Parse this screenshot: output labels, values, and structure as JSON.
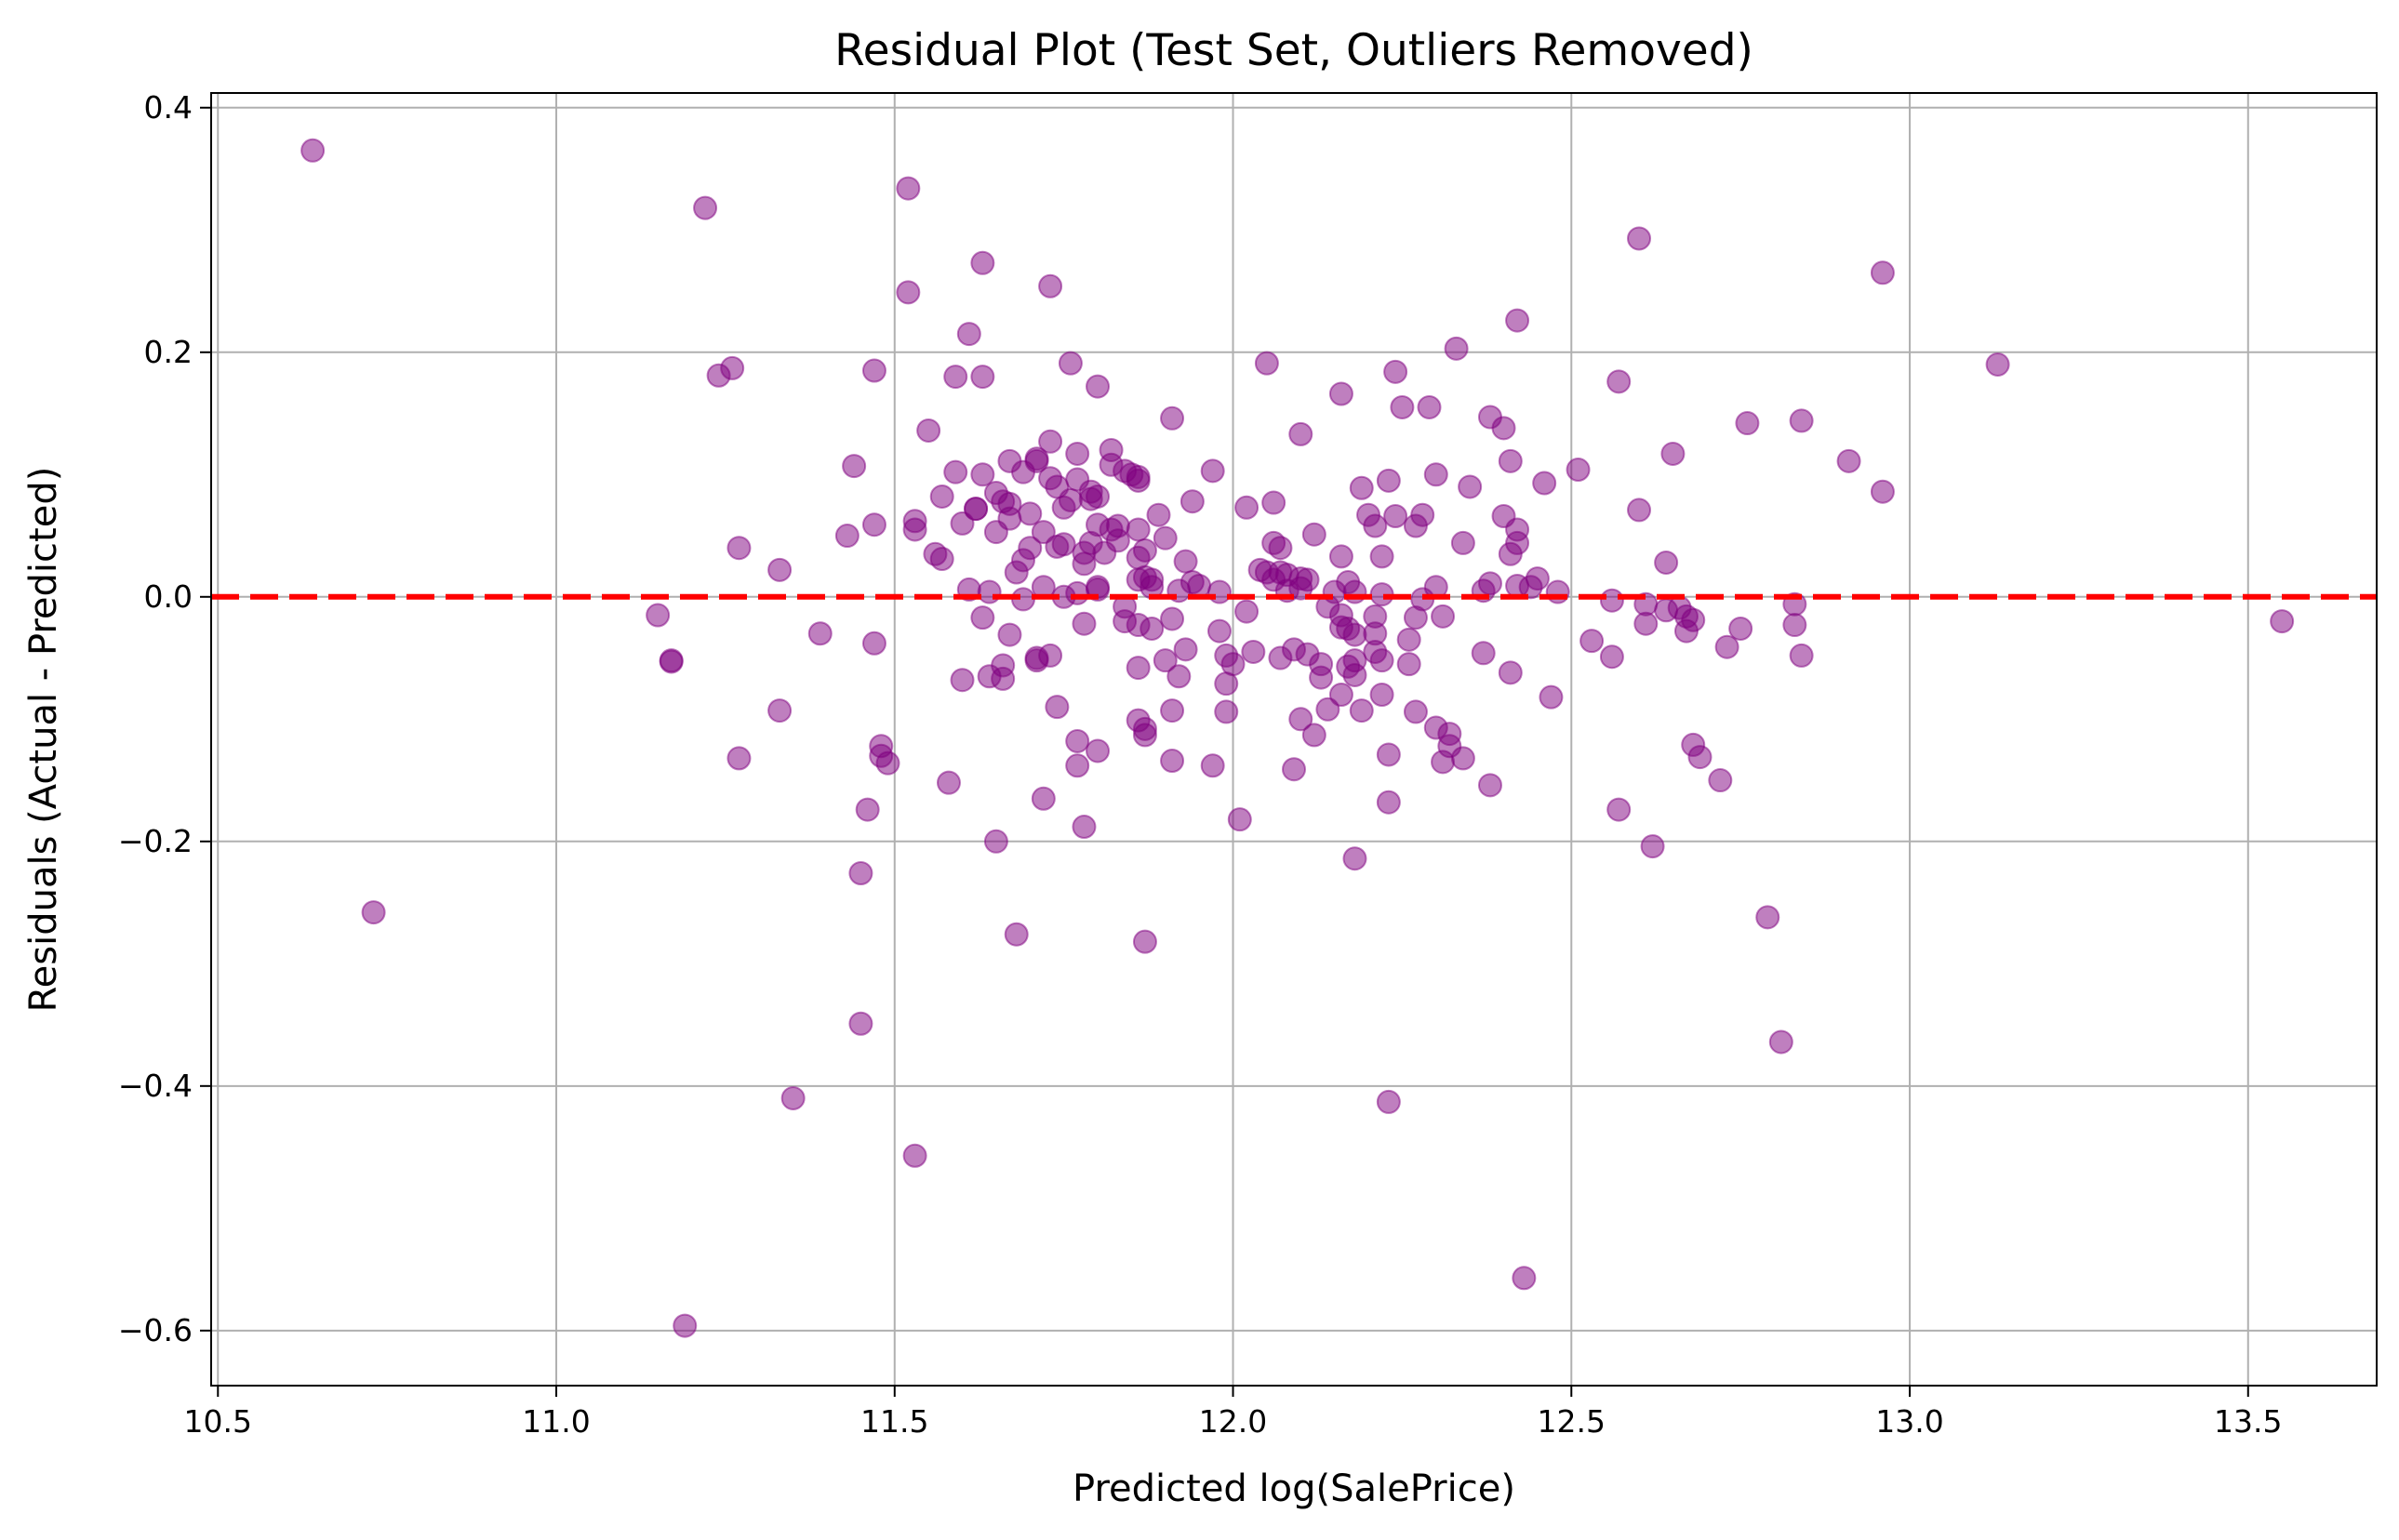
{
  "chart_data": {
    "type": "scatter",
    "title": "Residual Plot (Test Set, Outliers Removed)",
    "xlabel": "Predicted log(SalePrice)",
    "ylabel": "Residuals (Actual - Predicted)",
    "xlim": [
      10.49,
      13.69
    ],
    "ylim": [
      -0.645,
      0.412
    ],
    "x_ticks": [
      10.5,
      11.0,
      11.5,
      12.0,
      12.5,
      13.0,
      13.5
    ],
    "x_tick_labels": [
      "10.5",
      "11.0",
      "11.5",
      "12.0",
      "12.5",
      "13.0",
      "13.5"
    ],
    "y_ticks": [
      0.4,
      0.2,
      0.0,
      -0.2,
      -0.4,
      -0.6
    ],
    "y_tick_labels": [
      "0.4",
      "0.2",
      "0.0",
      "−0.2",
      "−0.4",
      "−0.6"
    ],
    "grid": true,
    "reference_line": {
      "y": 0.0,
      "style": "dashed",
      "color": "#ff0000"
    },
    "colors": {
      "point": "#800080",
      "point_opacity": 0.5,
      "reference_line": "#ff0000",
      "grid": "#b0b0b0"
    },
    "series": [
      {
        "points": [
          [
            10.64,
            0.365
          ],
          [
            10.73,
            -0.258
          ],
          [
            11.15,
            -0.015
          ],
          [
            11.17,
            -0.052
          ],
          [
            11.17,
            -0.053
          ],
          [
            11.19,
            -0.596
          ],
          [
            11.22,
            0.318
          ],
          [
            11.24,
            0.181
          ],
          [
            11.26,
            0.187
          ],
          [
            11.27,
            0.04
          ],
          [
            11.27,
            -0.132
          ],
          [
            11.33,
            0.022
          ],
          [
            11.33,
            -0.093
          ],
          [
            11.35,
            -0.41
          ],
          [
            11.39,
            -0.03
          ],
          [
            11.43,
            0.05
          ],
          [
            11.44,
            0.107
          ],
          [
            11.45,
            -0.226
          ],
          [
            11.45,
            -0.349
          ],
          [
            11.46,
            -0.174
          ],
          [
            11.47,
            0.185
          ],
          [
            11.47,
            -0.038
          ],
          [
            11.47,
            0.059
          ],
          [
            11.48,
            -0.13
          ],
          [
            11.48,
            -0.122
          ],
          [
            11.49,
            -0.136
          ],
          [
            11.52,
            0.334
          ],
          [
            11.52,
            0.249
          ],
          [
            11.53,
            0.062
          ],
          [
            11.53,
            0.055
          ],
          [
            11.53,
            -0.457
          ],
          [
            11.55,
            0.136
          ],
          [
            11.56,
            0.035
          ],
          [
            11.57,
            0.031
          ],
          [
            11.57,
            0.082
          ],
          [
            11.58,
            -0.152
          ],
          [
            11.59,
            0.102
          ],
          [
            11.59,
            0.18
          ],
          [
            11.6,
            0.06
          ],
          [
            11.6,
            -0.068
          ],
          [
            11.61,
            0.215
          ],
          [
            11.61,
            0.006
          ],
          [
            11.62,
            0.072
          ],
          [
            11.62,
            0.072
          ],
          [
            11.63,
            0.1
          ],
          [
            11.63,
            -0.017
          ],
          [
            11.63,
            0.273
          ],
          [
            11.63,
            0.18
          ],
          [
            11.64,
            0.004
          ],
          [
            11.64,
            -0.065
          ],
          [
            11.65,
            0.085
          ],
          [
            11.65,
            0.053
          ],
          [
            11.65,
            -0.2
          ],
          [
            11.66,
            0.078
          ],
          [
            11.66,
            -0.056
          ],
          [
            11.66,
            -0.067
          ],
          [
            11.67,
            0.111
          ],
          [
            11.67,
            0.076
          ],
          [
            11.67,
            -0.031
          ],
          [
            11.67,
            0.064
          ],
          [
            11.68,
            0.02
          ],
          [
            11.68,
            -0.276
          ],
          [
            11.69,
            -0.002
          ],
          [
            11.69,
            0.03
          ],
          [
            11.69,
            0.102
          ],
          [
            11.7,
            0.04
          ],
          [
            11.7,
            0.068
          ],
          [
            11.71,
            -0.052
          ],
          [
            11.71,
            0.111
          ],
          [
            11.71,
            0.113
          ],
          [
            11.71,
            -0.05
          ],
          [
            11.72,
            -0.165
          ],
          [
            11.72,
            0.008
          ],
          [
            11.72,
            0.053
          ],
          [
            11.73,
            0.127
          ],
          [
            11.73,
            0.254
          ],
          [
            11.73,
            -0.048
          ],
          [
            11.73,
            0.097
          ],
          [
            11.74,
            0.041
          ],
          [
            11.74,
            -0.09
          ],
          [
            11.74,
            0.09
          ],
          [
            11.75,
            0.073
          ],
          [
            11.75,
            0.043
          ],
          [
            11.75,
            0.0
          ],
          [
            11.76,
            0.079
          ],
          [
            11.76,
            0.191
          ],
          [
            11.77,
            0.117
          ],
          [
            11.77,
            0.003
          ],
          [
            11.77,
            -0.138
          ],
          [
            11.77,
            0.096
          ],
          [
            11.77,
            -0.118
          ],
          [
            11.78,
            -0.022
          ],
          [
            11.78,
            0.027
          ],
          [
            11.78,
            -0.188
          ],
          [
            11.78,
            0.036
          ],
          [
            11.79,
            0.08
          ],
          [
            11.79,
            0.044
          ],
          [
            11.79,
            0.086
          ],
          [
            11.8,
            -0.126
          ],
          [
            11.8,
            0.006
          ],
          [
            11.8,
            0.008
          ],
          [
            11.8,
            0.059
          ],
          [
            11.8,
            0.082
          ],
          [
            11.8,
            0.172
          ],
          [
            11.81,
            0.036
          ],
          [
            11.82,
            0.055
          ],
          [
            11.82,
            0.12
          ],
          [
            11.82,
            0.108
          ],
          [
            11.83,
            0.046
          ],
          [
            11.83,
            0.058
          ],
          [
            11.84,
            0.103
          ],
          [
            11.84,
            -0.02
          ],
          [
            11.84,
            -0.008
          ],
          [
            11.85,
            0.1
          ],
          [
            11.86,
            0.014
          ],
          [
            11.86,
            0.055
          ],
          [
            11.86,
            -0.058
          ],
          [
            11.86,
            -0.101
          ],
          [
            11.86,
            0.032
          ],
          [
            11.86,
            -0.023
          ],
          [
            11.86,
            0.095
          ],
          [
            11.86,
            0.098
          ],
          [
            11.87,
            -0.113
          ],
          [
            11.87,
            -0.108
          ],
          [
            11.87,
            0.016
          ],
          [
            11.87,
            -0.282
          ],
          [
            11.87,
            0.038
          ],
          [
            11.88,
            0.014
          ],
          [
            11.88,
            -0.026
          ],
          [
            11.88,
            0.008
          ],
          [
            11.89,
            0.067
          ],
          [
            11.9,
            0.048
          ],
          [
            11.9,
            -0.052
          ],
          [
            11.91,
            0.146
          ],
          [
            11.91,
            -0.093
          ],
          [
            11.91,
            -0.134
          ],
          [
            11.91,
            -0.018
          ],
          [
            11.92,
            -0.065
          ],
          [
            11.92,
            0.005
          ],
          [
            11.93,
            0.029
          ],
          [
            11.93,
            -0.043
          ],
          [
            11.94,
            0.078
          ],
          [
            11.94,
            0.012
          ],
          [
            11.95,
            0.009
          ],
          [
            11.97,
            0.103
          ],
          [
            11.97,
            -0.138
          ],
          [
            11.98,
            0.004
          ],
          [
            11.98,
            -0.028
          ],
          [
            11.99,
            -0.094
          ],
          [
            11.99,
            -0.071
          ],
          [
            11.99,
            -0.048
          ],
          [
            12.0,
            -0.055
          ],
          [
            12.01,
            -0.182
          ],
          [
            12.02,
            0.073
          ],
          [
            12.02,
            -0.012
          ],
          [
            12.03,
            -0.045
          ],
          [
            12.04,
            0.022
          ],
          [
            12.05,
            0.191
          ],
          [
            12.05,
            0.02
          ],
          [
            12.06,
            0.014
          ],
          [
            12.06,
            0.077
          ],
          [
            12.06,
            0.044
          ],
          [
            12.07,
            0.04
          ],
          [
            12.07,
            0.02
          ],
          [
            12.07,
            -0.05
          ],
          [
            12.08,
            0.005
          ],
          [
            12.08,
            0.018
          ],
          [
            12.09,
            -0.043
          ],
          [
            12.09,
            -0.141
          ],
          [
            12.1,
            0.015
          ],
          [
            12.1,
            0.007
          ],
          [
            12.1,
            0.133
          ],
          [
            12.1,
            -0.1
          ],
          [
            12.11,
            -0.047
          ],
          [
            12.11,
            0.014
          ],
          [
            12.12,
            0.051
          ],
          [
            12.12,
            -0.113
          ],
          [
            12.13,
            -0.066
          ],
          [
            12.13,
            -0.055
          ],
          [
            12.14,
            -0.092
          ],
          [
            12.14,
            -0.008
          ],
          [
            12.15,
            0.004
          ],
          [
            12.16,
            -0.08
          ],
          [
            12.16,
            -0.015
          ],
          [
            12.16,
            0.033
          ],
          [
            12.16,
            -0.025
          ],
          [
            12.16,
            0.166
          ],
          [
            12.17,
            -0.026
          ],
          [
            12.17,
            0.012
          ],
          [
            12.17,
            -0.057
          ],
          [
            12.18,
            -0.214
          ],
          [
            12.18,
            -0.064
          ],
          [
            12.18,
            0.004
          ],
          [
            12.18,
            -0.052
          ],
          [
            12.18,
            -0.031
          ],
          [
            12.19,
            0.089
          ],
          [
            12.19,
            -0.093
          ],
          [
            12.2,
            0.067
          ],
          [
            12.21,
            -0.016
          ],
          [
            12.21,
            -0.045
          ],
          [
            12.21,
            -0.03
          ],
          [
            12.21,
            0.058
          ],
          [
            12.22,
            -0.08
          ],
          [
            12.22,
            -0.052
          ],
          [
            12.22,
            0.002
          ],
          [
            12.22,
            0.033
          ],
          [
            12.23,
            -0.168
          ],
          [
            12.23,
            -0.413
          ],
          [
            12.23,
            -0.129
          ],
          [
            12.23,
            0.095
          ],
          [
            12.24,
            0.066
          ],
          [
            12.24,
            0.184
          ],
          [
            12.25,
            0.155
          ],
          [
            12.26,
            -0.035
          ],
          [
            12.26,
            -0.055
          ],
          [
            12.27,
            -0.017
          ],
          [
            12.27,
            -0.094
          ],
          [
            12.27,
            0.058
          ],
          [
            12.28,
            0.067
          ],
          [
            12.28,
            -0.002
          ],
          [
            12.29,
            0.155
          ],
          [
            12.3,
            -0.107
          ],
          [
            12.3,
            0.008
          ],
          [
            12.3,
            0.1
          ],
          [
            12.31,
            -0.016
          ],
          [
            12.31,
            -0.135
          ],
          [
            12.32,
            -0.122
          ],
          [
            12.32,
            -0.112
          ],
          [
            12.33,
            0.203
          ],
          [
            12.34,
            -0.132
          ],
          [
            12.34,
            0.044
          ],
          [
            12.35,
            0.09
          ],
          [
            12.37,
            -0.046
          ],
          [
            12.37,
            0.005
          ],
          [
            12.38,
            0.147
          ],
          [
            12.38,
            0.011
          ],
          [
            12.38,
            -0.154
          ],
          [
            12.4,
            0.066
          ],
          [
            12.4,
            0.138
          ],
          [
            12.41,
            0.111
          ],
          [
            12.41,
            -0.062
          ],
          [
            12.41,
            0.035
          ],
          [
            12.42,
            0.044
          ],
          [
            12.42,
            0.055
          ],
          [
            12.42,
            0.009
          ],
          [
            12.42,
            0.226
          ],
          [
            12.43,
            -0.557
          ],
          [
            12.44,
            0.008
          ],
          [
            12.45,
            0.015
          ],
          [
            12.46,
            0.093
          ],
          [
            12.47,
            -0.082
          ],
          [
            12.48,
            0.004
          ],
          [
            12.51,
            0.104
          ],
          [
            12.53,
            -0.036
          ],
          [
            12.56,
            -0.003
          ],
          [
            12.56,
            -0.049
          ],
          [
            12.57,
            0.176
          ],
          [
            12.57,
            -0.174
          ],
          [
            12.6,
            0.293
          ],
          [
            12.6,
            0.071
          ],
          [
            12.61,
            -0.006
          ],
          [
            12.61,
            -0.022
          ],
          [
            12.62,
            -0.204
          ],
          [
            12.64,
            -0.011
          ],
          [
            12.64,
            0.028
          ],
          [
            12.65,
            0.117
          ],
          [
            12.66,
            -0.009
          ],
          [
            12.67,
            -0.016
          ],
          [
            12.67,
            -0.028
          ],
          [
            12.68,
            -0.019
          ],
          [
            12.68,
            -0.121
          ],
          [
            12.69,
            -0.131
          ],
          [
            12.72,
            -0.15
          ],
          [
            12.73,
            -0.041
          ],
          [
            12.75,
            -0.026
          ],
          [
            12.76,
            0.142
          ],
          [
            12.79,
            -0.262
          ],
          [
            12.81,
            -0.364
          ],
          [
            12.83,
            -0.006
          ],
          [
            12.83,
            -0.023
          ],
          [
            12.84,
            -0.048
          ],
          [
            12.84,
            0.144
          ],
          [
            12.91,
            0.111
          ],
          [
            12.96,
            0.086
          ],
          [
            12.96,
            0.265
          ],
          [
            13.13,
            0.19
          ],
          [
            13.55,
            -0.02
          ]
        ]
      }
    ]
  }
}
